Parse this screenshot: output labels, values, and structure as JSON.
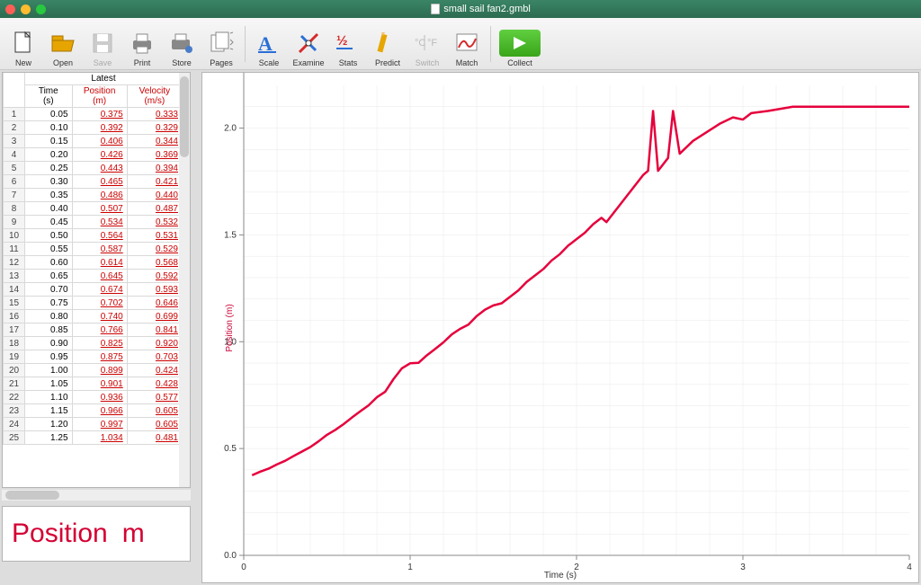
{
  "window": {
    "title": "small sail fan2.gmbl",
    "traffic_colors": [
      "#ff5f57",
      "#febc2e",
      "#28c840"
    ]
  },
  "toolbar": {
    "items": [
      {
        "label": "New",
        "icon": "new",
        "enabled": true
      },
      {
        "label": "Open",
        "icon": "open",
        "enabled": true
      },
      {
        "label": "Save",
        "icon": "save",
        "enabled": false
      },
      {
        "label": "Print",
        "icon": "print",
        "enabled": true
      },
      {
        "label": "Store",
        "icon": "store",
        "enabled": true
      },
      {
        "label": "Pages",
        "icon": "pages",
        "enabled": true
      },
      {
        "label": "Scale",
        "icon": "scale",
        "enabled": true
      },
      {
        "label": "Examine",
        "icon": "examine",
        "enabled": true
      },
      {
        "label": "Stats",
        "icon": "stats",
        "enabled": true
      },
      {
        "label": "Predict",
        "icon": "predict",
        "enabled": true
      },
      {
        "label": "Switch",
        "icon": "switch",
        "enabled": false
      },
      {
        "label": "Match",
        "icon": "match",
        "enabled": true
      },
      {
        "label": "Collect",
        "icon": "collect",
        "enabled": true,
        "primary": true
      }
    ]
  },
  "table": {
    "group_header": "Latest",
    "columns": [
      {
        "label": "Time",
        "unit": "(s)",
        "red": false
      },
      {
        "label": "Position",
        "unit": "(m)",
        "red": true
      },
      {
        "label": "Velocity",
        "unit": "(m/s)",
        "red": true
      }
    ],
    "rows": [
      {
        "i": 1,
        "t": "0.05",
        "p": "0.375",
        "v": "0.333"
      },
      {
        "i": 2,
        "t": "0.10",
        "p": "0.392",
        "v": "0.329"
      },
      {
        "i": 3,
        "t": "0.15",
        "p": "0.406",
        "v": "0.344"
      },
      {
        "i": 4,
        "t": "0.20",
        "p": "0.426",
        "v": "0.369"
      },
      {
        "i": 5,
        "t": "0.25",
        "p": "0.443",
        "v": "0.394"
      },
      {
        "i": 6,
        "t": "0.30",
        "p": "0.465",
        "v": "0.421"
      },
      {
        "i": 7,
        "t": "0.35",
        "p": "0.486",
        "v": "0.440"
      },
      {
        "i": 8,
        "t": "0.40",
        "p": "0.507",
        "v": "0.487"
      },
      {
        "i": 9,
        "t": "0.45",
        "p": "0.534",
        "v": "0.532"
      },
      {
        "i": 10,
        "t": "0.50",
        "p": "0.564",
        "v": "0.531"
      },
      {
        "i": 11,
        "t": "0.55",
        "p": "0.587",
        "v": "0.529"
      },
      {
        "i": 12,
        "t": "0.60",
        "p": "0.614",
        "v": "0.568"
      },
      {
        "i": 13,
        "t": "0.65",
        "p": "0.645",
        "v": "0.592"
      },
      {
        "i": 14,
        "t": "0.70",
        "p": "0.674",
        "v": "0.593"
      },
      {
        "i": 15,
        "t": "0.75",
        "p": "0.702",
        "v": "0.646"
      },
      {
        "i": 16,
        "t": "0.80",
        "p": "0.740",
        "v": "0.699"
      },
      {
        "i": 17,
        "t": "0.85",
        "p": "0.766",
        "v": "0.841"
      },
      {
        "i": 18,
        "t": "0.90",
        "p": "0.825",
        "v": "0.920"
      },
      {
        "i": 19,
        "t": "0.95",
        "p": "0.875",
        "v": "0.703"
      },
      {
        "i": 20,
        "t": "1.00",
        "p": "0.899",
        "v": "0.424"
      },
      {
        "i": 21,
        "t": "1.05",
        "p": "0.901",
        "v": "0.428"
      },
      {
        "i": 22,
        "t": "1.10",
        "p": "0.936",
        "v": "0.577"
      },
      {
        "i": 23,
        "t": "1.15",
        "p": "0.966",
        "v": "0.605"
      },
      {
        "i": 24,
        "t": "1.20",
        "p": "0.997",
        "v": "0.605"
      },
      {
        "i": 25,
        "t": "1.25",
        "p": "1.034",
        "v": "0.481"
      }
    ]
  },
  "meter": {
    "label": "Position",
    "unit": "m",
    "color": "#d40033"
  },
  "chart": {
    "type": "line",
    "ylabel": "Position (m)",
    "xlabel": "Time (s)",
    "line_color": "#e6003c",
    "line_width": 2.5,
    "background_color": "#ffffff",
    "grid_color": "#e8e8e8",
    "axis_color": "#888888",
    "tick_font_size": 10,
    "label_font_size": 10,
    "xlim": [
      0,
      4
    ],
    "ylim": [
      0,
      2.2
    ],
    "xticks": [
      0,
      1,
      2,
      3,
      4
    ],
    "yticks": [
      0.0,
      0.5,
      1.0,
      1.5,
      2.0
    ],
    "ytick_labels": [
      "0.0",
      "0.5",
      "1.0",
      "1.5",
      "2.0"
    ],
    "series": [
      {
        "x": 0.05,
        "y": 0.375
      },
      {
        "x": 0.1,
        "y": 0.392
      },
      {
        "x": 0.15,
        "y": 0.406
      },
      {
        "x": 0.2,
        "y": 0.426
      },
      {
        "x": 0.25,
        "y": 0.443
      },
      {
        "x": 0.3,
        "y": 0.465
      },
      {
        "x": 0.35,
        "y": 0.486
      },
      {
        "x": 0.4,
        "y": 0.507
      },
      {
        "x": 0.45,
        "y": 0.534
      },
      {
        "x": 0.5,
        "y": 0.564
      },
      {
        "x": 0.55,
        "y": 0.587
      },
      {
        "x": 0.6,
        "y": 0.614
      },
      {
        "x": 0.65,
        "y": 0.645
      },
      {
        "x": 0.7,
        "y": 0.674
      },
      {
        "x": 0.75,
        "y": 0.702
      },
      {
        "x": 0.8,
        "y": 0.74
      },
      {
        "x": 0.85,
        "y": 0.766
      },
      {
        "x": 0.9,
        "y": 0.825
      },
      {
        "x": 0.95,
        "y": 0.875
      },
      {
        "x": 1.0,
        "y": 0.899
      },
      {
        "x": 1.05,
        "y": 0.901
      },
      {
        "x": 1.1,
        "y": 0.936
      },
      {
        "x": 1.15,
        "y": 0.966
      },
      {
        "x": 1.2,
        "y": 0.997
      },
      {
        "x": 1.25,
        "y": 1.034
      },
      {
        "x": 1.3,
        "y": 1.06
      },
      {
        "x": 1.35,
        "y": 1.08
      },
      {
        "x": 1.4,
        "y": 1.12
      },
      {
        "x": 1.45,
        "y": 1.15
      },
      {
        "x": 1.5,
        "y": 1.17
      },
      {
        "x": 1.55,
        "y": 1.18
      },
      {
        "x": 1.6,
        "y": 1.21
      },
      {
        "x": 1.65,
        "y": 1.24
      },
      {
        "x": 1.7,
        "y": 1.28
      },
      {
        "x": 1.75,
        "y": 1.31
      },
      {
        "x": 1.8,
        "y": 1.34
      },
      {
        "x": 1.85,
        "y": 1.38
      },
      {
        "x": 1.9,
        "y": 1.41
      },
      {
        "x": 1.95,
        "y": 1.45
      },
      {
        "x": 2.0,
        "y": 1.48
      },
      {
        "x": 2.05,
        "y": 1.51
      },
      {
        "x": 2.1,
        "y": 1.55
      },
      {
        "x": 2.15,
        "y": 1.58
      },
      {
        "x": 2.18,
        "y": 1.56
      },
      {
        "x": 2.22,
        "y": 1.6
      },
      {
        "x": 2.28,
        "y": 1.66
      },
      {
        "x": 2.34,
        "y": 1.72
      },
      {
        "x": 2.4,
        "y": 1.78
      },
      {
        "x": 2.43,
        "y": 1.8
      },
      {
        "x": 2.46,
        "y": 2.08
      },
      {
        "x": 2.49,
        "y": 1.8
      },
      {
        "x": 2.55,
        "y": 1.86
      },
      {
        "x": 2.58,
        "y": 2.08
      },
      {
        "x": 2.62,
        "y": 1.88
      },
      {
        "x": 2.7,
        "y": 1.94
      },
      {
        "x": 2.78,
        "y": 1.98
      },
      {
        "x": 2.86,
        "y": 2.02
      },
      {
        "x": 2.94,
        "y": 2.05
      },
      {
        "x": 3.0,
        "y": 2.04
      },
      {
        "x": 3.05,
        "y": 2.07
      },
      {
        "x": 3.15,
        "y": 2.08
      },
      {
        "x": 3.3,
        "y": 2.1
      },
      {
        "x": 3.5,
        "y": 2.1
      },
      {
        "x": 3.7,
        "y": 2.1
      },
      {
        "x": 3.9,
        "y": 2.1
      },
      {
        "x": 4.0,
        "y": 2.1
      }
    ]
  }
}
